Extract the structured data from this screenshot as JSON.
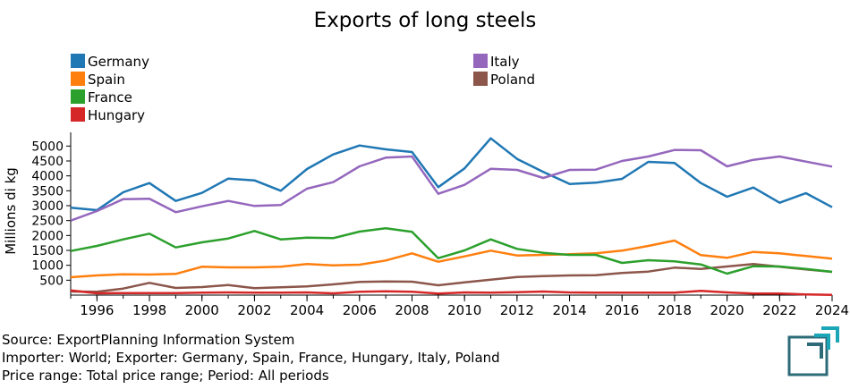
{
  "chart_data": {
    "type": "line",
    "title": "Exports of long steels",
    "xlabel": "",
    "ylabel": "Millions di kg",
    "xlim": [
      1995,
      2024
    ],
    "ylim": [
      0,
      5400
    ],
    "yticks": [
      500,
      1000,
      1500,
      2000,
      2500,
      3000,
      3500,
      4000,
      4500,
      5000
    ],
    "xticks": [
      1996,
      1998,
      2000,
      2002,
      2004,
      2006,
      2008,
      2010,
      2012,
      2014,
      2016,
      2018,
      2020,
      2022,
      2024
    ],
    "x": [
      1995,
      1996,
      1997,
      1998,
      1999,
      2000,
      2001,
      2002,
      2003,
      2004,
      2005,
      2006,
      2007,
      2008,
      2009,
      2010,
      2011,
      2012,
      2013,
      2014,
      2015,
      2016,
      2017,
      2018,
      2019,
      2020,
      2021,
      2022,
      2023,
      2024
    ],
    "legend_position": "top",
    "series": [
      {
        "name": "Germany",
        "color": "#1f77b4",
        "values": [
          2930,
          2850,
          3450,
          3760,
          3160,
          3430,
          3910,
          3850,
          3500,
          4230,
          4720,
          5020,
          4890,
          4800,
          3620,
          4250,
          5260,
          4570,
          4130,
          3730,
          3770,
          3900,
          4470,
          4430,
          3760,
          3300,
          3610,
          3100,
          3420,
          2950
        ]
      },
      {
        "name": "Italy",
        "color": "#9467bd",
        "values": [
          2500,
          2820,
          3220,
          3230,
          2780,
          2980,
          3160,
          2990,
          3020,
          3570,
          3790,
          4320,
          4610,
          4650,
          3400,
          3700,
          4240,
          4200,
          3930,
          4200,
          4210,
          4500,
          4650,
          4870,
          4860,
          4320,
          4540,
          4650,
          4480,
          4310
        ]
      },
      {
        "name": "Spain",
        "color": "#ff7f0e",
        "values": [
          600,
          660,
          700,
          690,
          710,
          950,
          930,
          930,
          950,
          1040,
          1000,
          1020,
          1160,
          1400,
          1120,
          1300,
          1490,
          1330,
          1350,
          1370,
          1400,
          1490,
          1650,
          1830,
          1340,
          1250,
          1450,
          1400,
          1310,
          1220
        ]
      },
      {
        "name": "Poland",
        "color": "#8c564b",
        "values": [
          120,
          110,
          220,
          410,
          240,
          270,
          340,
          230,
          260,
          290,
          360,
          440,
          460,
          450,
          330,
          430,
          520,
          610,
          640,
          660,
          670,
          740,
          790,
          920,
          880,
          960,
          1040,
          950,
          860,
          780
        ]
      },
      {
        "name": "France",
        "color": "#2ca02c",
        "values": [
          1480,
          1650,
          1870,
          2060,
          1600,
          1770,
          1900,
          2150,
          1870,
          1930,
          1910,
          2130,
          2240,
          2120,
          1240,
          1500,
          1870,
          1550,
          1420,
          1350,
          1350,
          1080,
          1170,
          1130,
          1030,
          720,
          970,
          960,
          880,
          780
        ]
      },
      {
        "name": "Hungary",
        "color": "#d62728",
        "values": [
          160,
          60,
          70,
          70,
          70,
          80,
          90,
          80,
          80,
          90,
          60,
          110,
          130,
          110,
          50,
          90,
          80,
          100,
          120,
          90,
          80,
          80,
          80,
          80,
          140,
          90,
          50,
          50,
          20,
          10
        ]
      }
    ]
  },
  "legend_layout": [
    [
      "Germany",
      "Italy"
    ],
    [
      "Spain",
      "Poland"
    ],
    [
      "France"
    ],
    [
      "Hungary"
    ]
  ],
  "footer": {
    "source": "Source: ExportPlanning Information System",
    "filters": "Importer: World; Exporter: Germany, Spain, France, Hungary, Italy, Poland",
    "price": "Price range: Total price range; Period: All periods"
  },
  "logo": {
    "color": "#2e6b78",
    "accent": "#1aa6b7"
  }
}
